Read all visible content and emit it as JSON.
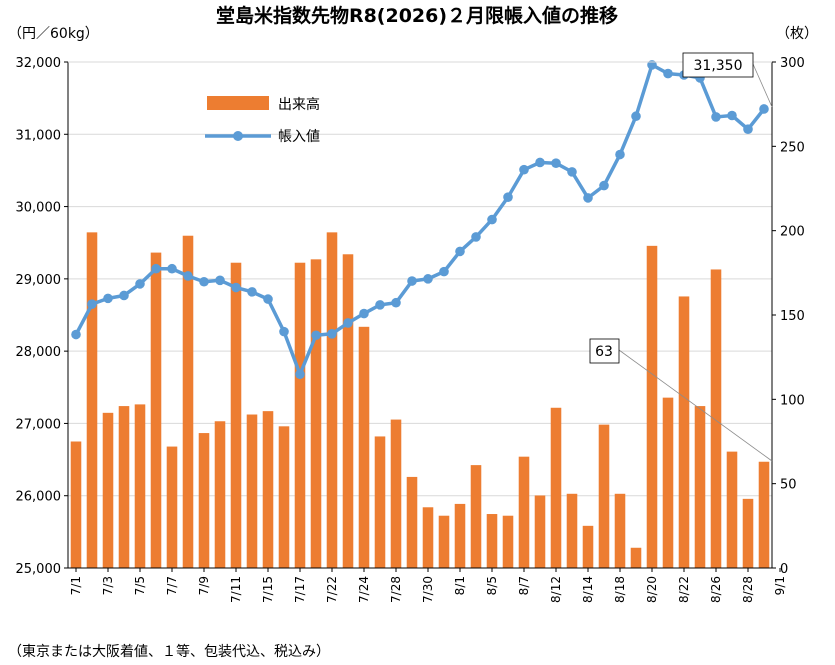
{
  "chart_data": {
    "type": "bar",
    "title": "堂島米指数先物R8(2026)２月限帳入値の推移",
    "ylabel_left": "（円／60kg）",
    "ylabel_right": "（枚）",
    "footnote": "（東京または大阪着値、１等、包装代込、税込み）",
    "ylim_left": [
      25000,
      32000
    ],
    "ylim_right": [
      0,
      300
    ],
    "yticks_left": [
      "25,000",
      "26,000",
      "27,000",
      "28,000",
      "29,000",
      "30,000",
      "31,000",
      "32,000"
    ],
    "yticks_right": [
      "0",
      "50",
      "100",
      "150",
      "200",
      "250",
      "300"
    ],
    "grid": true,
    "legend_position": "top-left",
    "xtick_labels": [
      "7/1",
      "7/3",
      "7/5",
      "7/7",
      "7/9",
      "7/11",
      "7/15",
      "7/17",
      "7/22",
      "7/24",
      "7/28",
      "7/30",
      "8/1",
      "8/5",
      "8/7",
      "8/12",
      "8/14",
      "8/18",
      "8/20",
      "8/22",
      "8/26",
      "8/28",
      "9/1"
    ],
    "series": [
      {
        "name": "出来高",
        "type": "bar",
        "axis": "right",
        "color": "#ED7D31",
        "values": [
          75,
          199,
          92,
          96,
          97,
          187,
          72,
          197,
          80,
          87,
          181,
          91,
          93,
          84,
          181,
          183,
          199,
          186,
          143,
          78,
          88,
          54,
          36,
          31,
          38,
          61,
          32,
          31,
          66,
          43,
          95,
          44,
          25,
          85,
          44,
          12,
          191,
          101,
          161,
          96,
          177,
          69,
          41,
          63
        ]
      },
      {
        "name": "帳入値",
        "type": "line",
        "axis": "left",
        "color": "#5B9BD5",
        "values": [
          28230,
          28650,
          28730,
          28770,
          28930,
          29140,
          29140,
          29040,
          28960,
          28980,
          28880,
          28820,
          28720,
          28270,
          27680,
          28220,
          28240,
          28390,
          28520,
          28640,
          28670,
          28970,
          29000,
          29100,
          29380,
          29580,
          29820,
          30130,
          30510,
          30610,
          30600,
          30480,
          30120,
          30290,
          30720,
          31250,
          31960,
          31840,
          31820,
          31780,
          31240,
          31260,
          31070,
          31350
        ]
      }
    ],
    "annotations": [
      {
        "label": "31,350"
      },
      {
        "label": "63"
      }
    ]
  }
}
